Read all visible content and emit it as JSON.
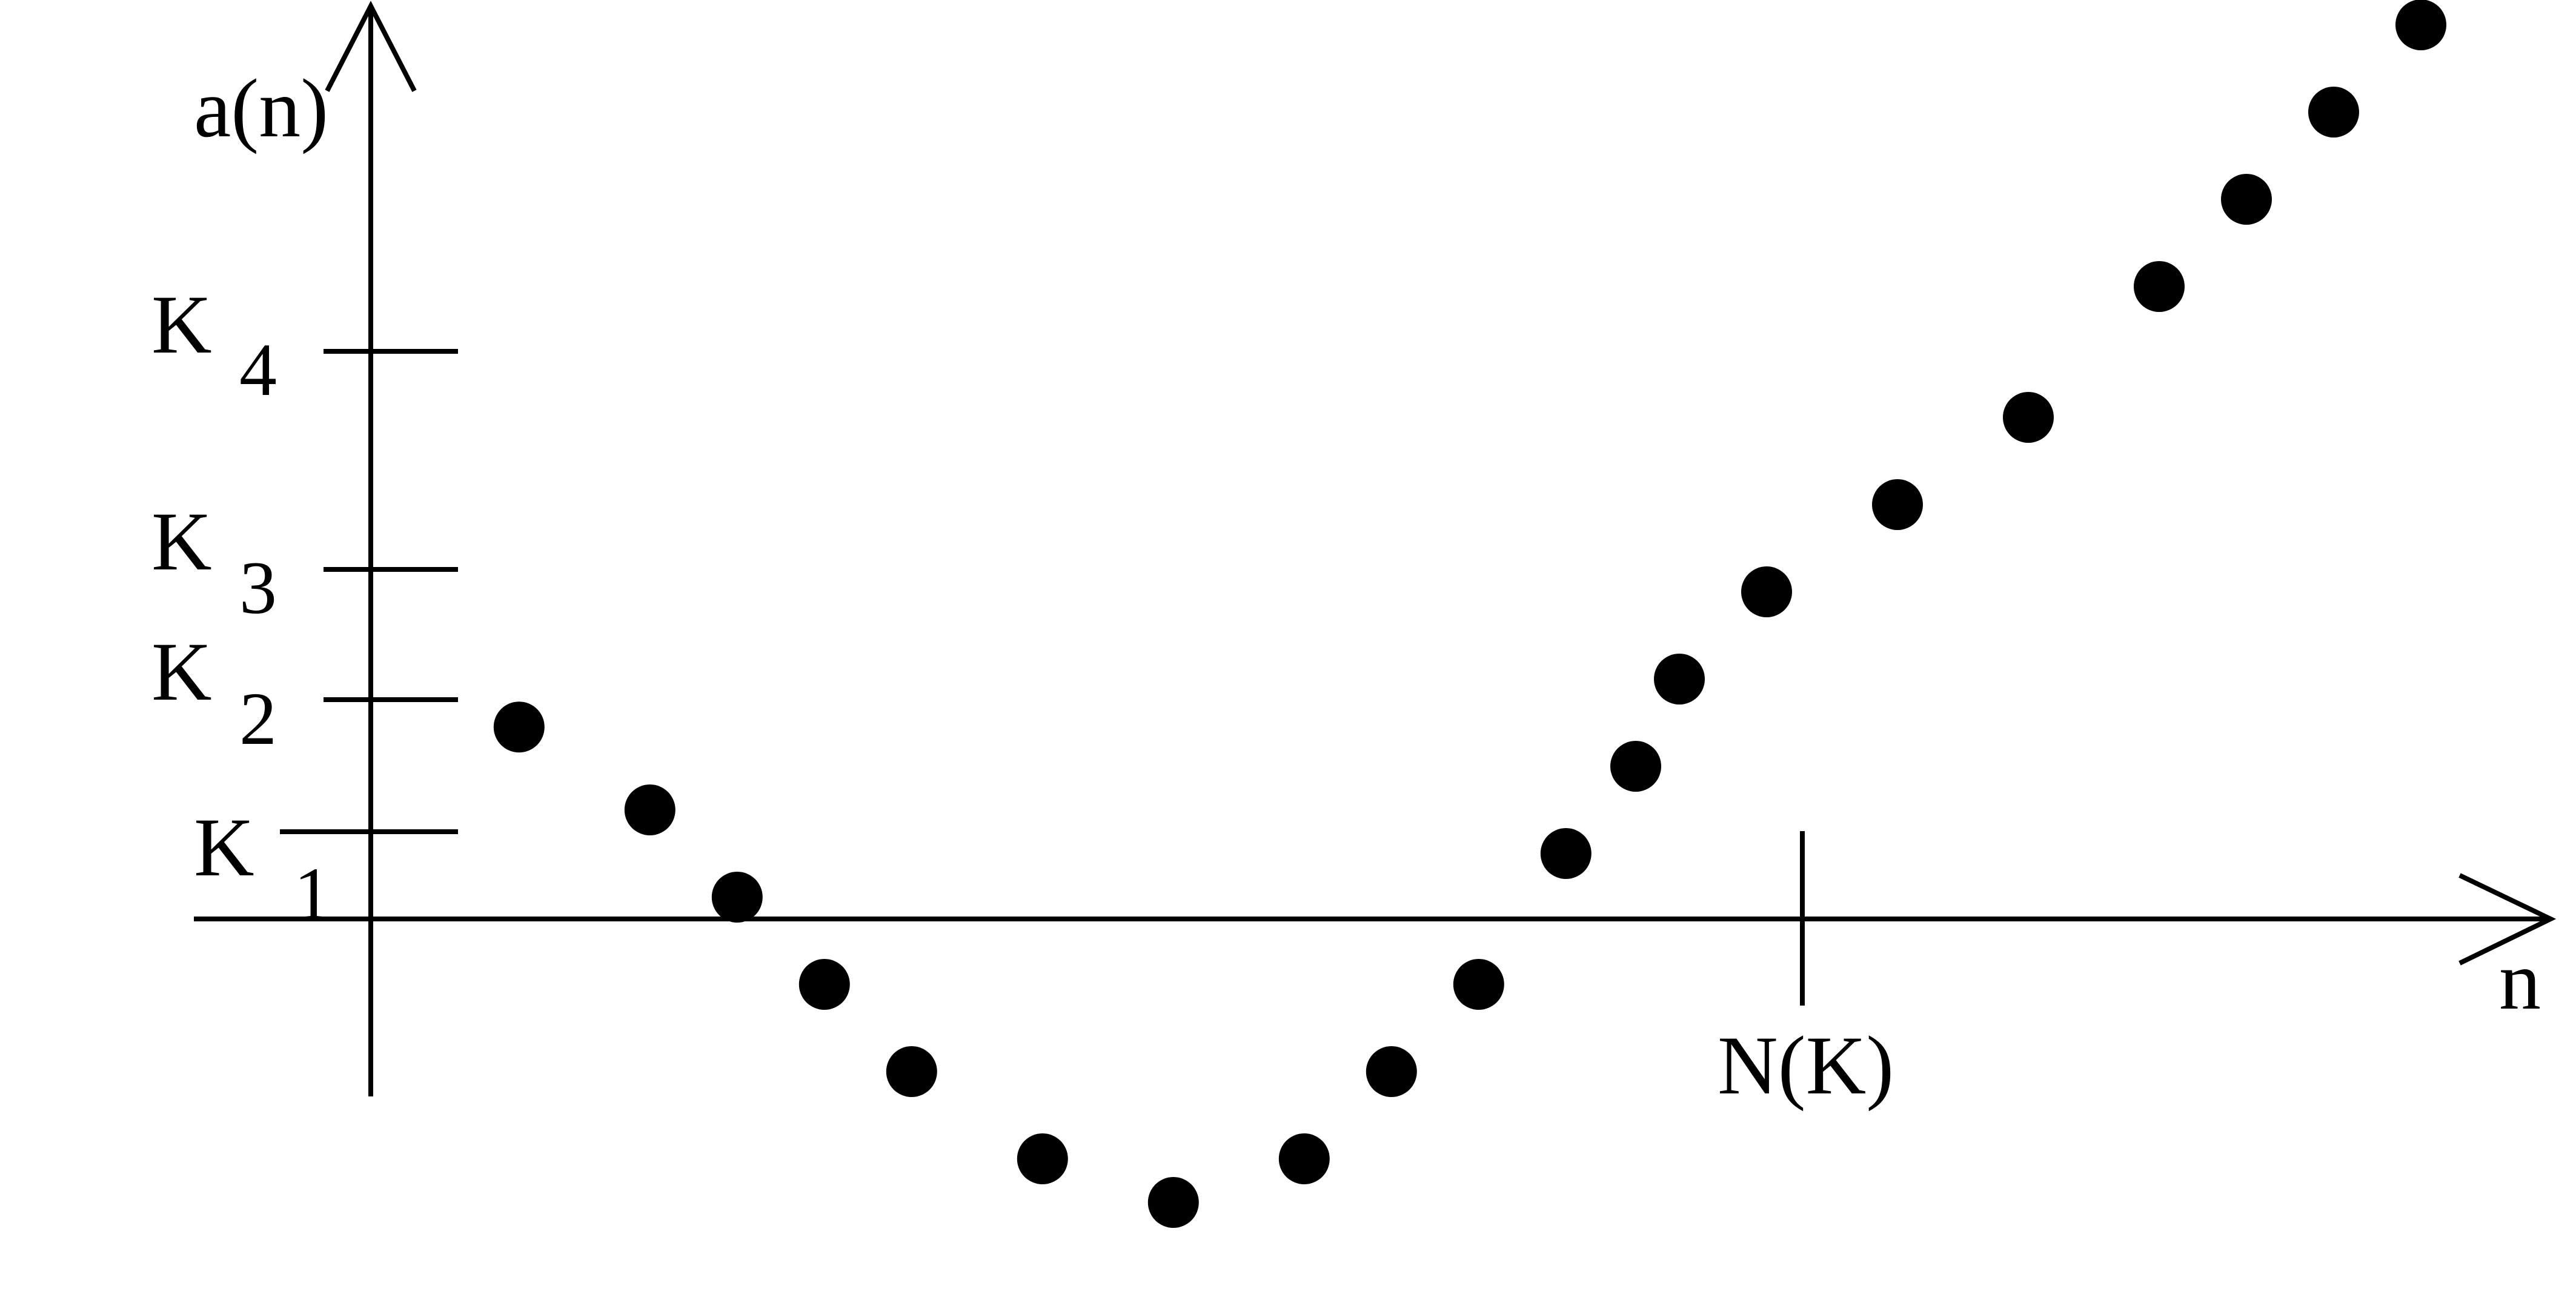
{
  "axes": {
    "x_label": "n",
    "y_label": "a(n)"
  },
  "y_ticks": [
    {
      "main": "K",
      "sub": "1"
    },
    {
      "main": "K",
      "sub": "2"
    },
    {
      "main": "K",
      "sub": "3"
    },
    {
      "main": "K",
      "sub": "4"
    }
  ],
  "x_ticks": [
    {
      "label": "N(K)"
    }
  ],
  "colors": {
    "ink": "#000000",
    "background": "#ffffff"
  },
  "chart_data": {
    "type": "scatter",
    "title": "",
    "xlabel": "n",
    "ylabel": "a(n)",
    "grid": false,
    "legend": "none",
    "series": [
      {
        "x": [
          1.7,
          3.2,
          4.2,
          5.2,
          6.2,
          7.7,
          9.2,
          10.7,
          11.7,
          12.7,
          13.7,
          14.5,
          15.0,
          16.0,
          17.5,
          19.0,
          20.5,
          21.5,
          22.5,
          23.5
        ],
        "y": [
          2.2,
          1.25,
          0.25,
          -0.75,
          -1.75,
          -2.75,
          -3.25,
          -2.75,
          -1.75,
          -0.75,
          0.75,
          1.75,
          2.75,
          3.75,
          4.75,
          5.75,
          7.25,
          8.25,
          9.25,
          10.25
        ]
      }
    ],
    "x_ticks": [
      {
        "x": 16.5,
        "label": "N(K)"
      }
    ],
    "y_ticks": [
      {
        "y": 1.0,
        "label": "K1"
      },
      {
        "y": 2.5,
        "label": "K2"
      },
      {
        "y": 4.0,
        "label": "K3"
      },
      {
        "y": 6.5,
        "label": "K4"
      }
    ]
  }
}
